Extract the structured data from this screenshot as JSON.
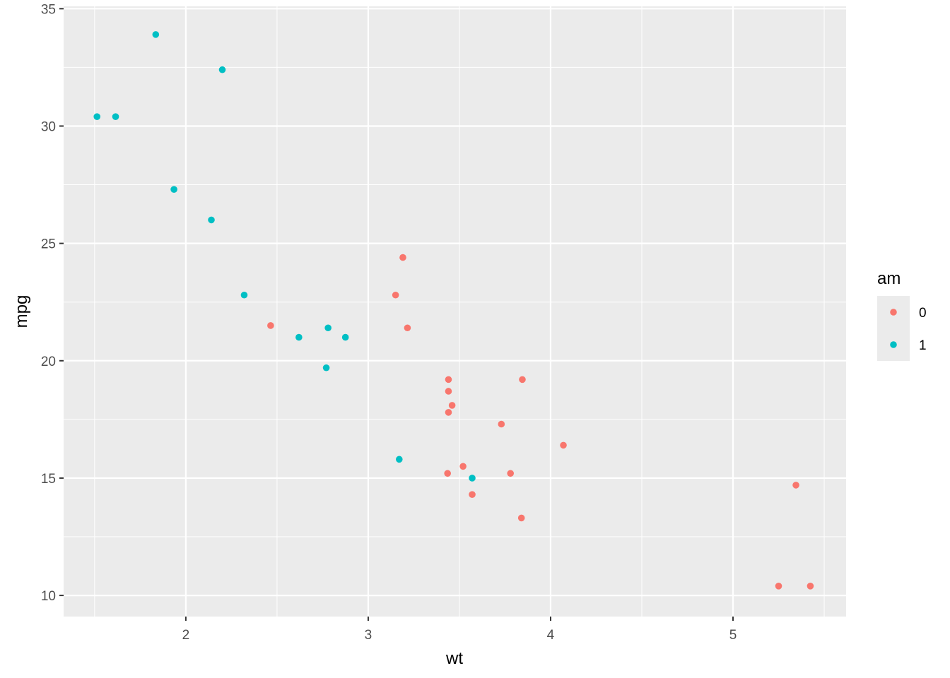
{
  "chart_data": {
    "type": "scatter",
    "xlabel": "wt",
    "ylabel": "mpg",
    "xlim": [
      1.33,
      5.62
    ],
    "ylim": [
      9.1,
      35.1
    ],
    "x_ticks": [
      2,
      3,
      4,
      5
    ],
    "y_ticks": [
      10,
      15,
      20,
      25,
      30,
      35
    ],
    "grid": true,
    "legend": {
      "title": "am",
      "position": "right",
      "entries": [
        {
          "label": "0",
          "color": "#F8766D"
        },
        {
          "label": "1",
          "color": "#00BFC4"
        }
      ]
    },
    "colors": {
      "panel_background": "#EBEBEB",
      "grid": "#FFFFFF",
      "axis_tick": "#333333",
      "0": "#F8766D",
      "1": "#00BFC4"
    },
    "series": [
      {
        "name": "0",
        "color": "#F8766D",
        "points": [
          [
            3.215,
            21.4
          ],
          [
            3.44,
            18.7
          ],
          [
            3.46,
            18.1
          ],
          [
            3.57,
            14.3
          ],
          [
            3.19,
            24.4
          ],
          [
            3.15,
            22.8
          ],
          [
            3.44,
            19.2
          ],
          [
            3.44,
            17.8
          ],
          [
            4.07,
            16.4
          ],
          [
            3.73,
            17.3
          ],
          [
            3.78,
            15.2
          ],
          [
            5.25,
            10.4
          ],
          [
            5.424,
            10.4
          ],
          [
            5.345,
            14.7
          ],
          [
            2.465,
            21.5
          ],
          [
            3.52,
            15.5
          ],
          [
            3.435,
            15.2
          ],
          [
            3.84,
            13.3
          ],
          [
            3.845,
            19.2
          ]
        ]
      },
      {
        "name": "1",
        "color": "#00BFC4",
        "points": [
          [
            2.62,
            21.0
          ],
          [
            2.875,
            21.0
          ],
          [
            2.32,
            22.8
          ],
          [
            2.2,
            32.4
          ],
          [
            1.615,
            30.4
          ],
          [
            1.835,
            33.9
          ],
          [
            1.935,
            27.3
          ],
          [
            2.14,
            26.0
          ],
          [
            1.513,
            30.4
          ],
          [
            3.17,
            15.8
          ],
          [
            2.77,
            19.7
          ],
          [
            3.57,
            15.0
          ],
          [
            2.78,
            21.4
          ]
        ]
      }
    ]
  }
}
